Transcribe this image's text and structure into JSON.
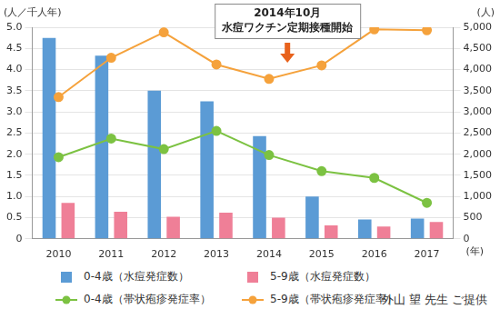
{
  "chart_data": {
    "type": "bar",
    "ylabel": "(人／千人年)",
    "y2label": "(人)",
    "xlabel": "(年)",
    "categories": [
      "2010",
      "2011",
      "2012",
      "2013",
      "2014",
      "2015",
      "2016",
      "2017"
    ],
    "series": [
      {
        "name": "0-4歳（水痘発症数）",
        "type": "bar",
        "axis": "y2",
        "color": "#5b9bd5",
        "values": [
          4750,
          4330,
          3500,
          3250,
          2430,
          1000,
          460,
          480
        ]
      },
      {
        "name": "5-9歳（水痘発症数）",
        "type": "bar",
        "axis": "y2",
        "color": "#ef7f97",
        "values": [
          850,
          640,
          520,
          620,
          500,
          320,
          290,
          400
        ]
      },
      {
        "name": "0-4歳（帯状疱疹発症率）",
        "type": "line",
        "marker": "circle",
        "color": "#7cc242",
        "values": [
          1.93,
          2.37,
          2.12,
          2.55,
          1.98,
          1.6,
          1.44,
          0.85
        ]
      },
      {
        "name": "5-9歳（帯状疱疹発症率）",
        "type": "line",
        "marker": "circle",
        "color": "#f5a23c",
        "values": [
          3.35,
          4.28,
          4.88,
          4.12,
          3.78,
          4.1,
          4.95,
          4.93
        ]
      }
    ],
    "ylim": [
      0,
      5
    ],
    "yticks": [
      0,
      0.5,
      {
        "value": 1,
        "label": "1.0"
      },
      1.5,
      {
        "value": 2,
        "label": "2.0"
      },
      2.5,
      {
        "value": 3,
        "label": "3.0"
      },
      3.5,
      {
        "value": 4,
        "label": "4.0"
      },
      4.5,
      {
        "value": 5,
        "label": "5.0"
      }
    ],
    "y2lim": [
      0,
      5000
    ],
    "y2ticks": [
      0,
      500,
      {
        "value": 1000,
        "label": "1,000"
      },
      {
        "value": 1500,
        "label": "1,500"
      },
      {
        "value": 2000,
        "label": "2,000"
      },
      {
        "value": 2500,
        "label": "2,500"
      },
      {
        "value": 3000,
        "label": "3,000"
      },
      {
        "value": 3500,
        "label": "3,500"
      },
      {
        "value": 4000,
        "label": "4,000"
      },
      {
        "value": 4500,
        "label": "4,500"
      },
      {
        "value": 5000,
        "label": "5,000"
      }
    ],
    "grid": true,
    "legend": "bottom",
    "annotations": [
      {
        "x": "2014",
        "lines": [
          "2014年10月",
          "水痘ワクチン定期接種開始"
        ]
      }
    ],
    "credit": "外山 望 先生 ご提供"
  }
}
